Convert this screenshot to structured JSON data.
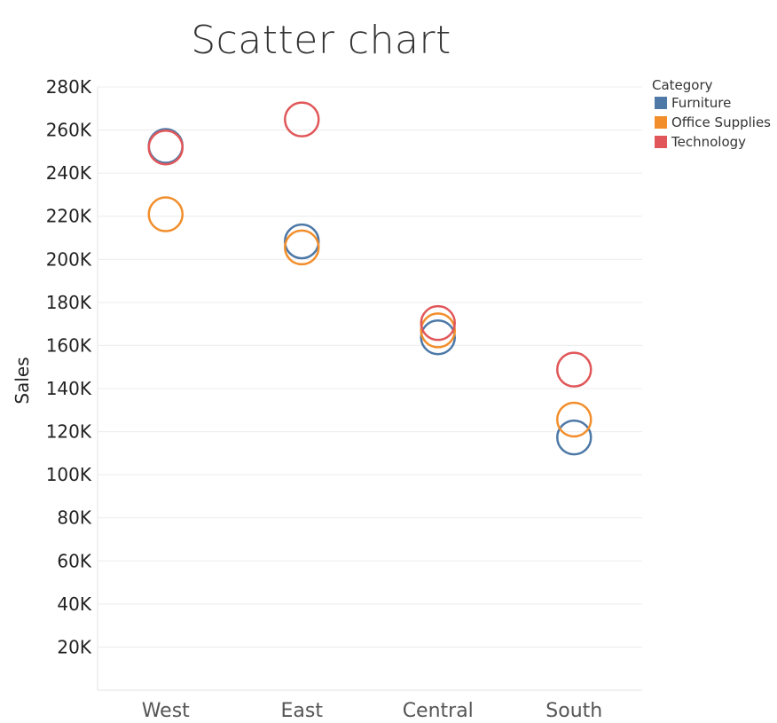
{
  "chart_data": {
    "type": "scatter",
    "title": "Scatter chart",
    "xlabel": "",
    "ylabel": "Sales",
    "categories": [
      "West",
      "East",
      "Central",
      "South"
    ],
    "ylim": [
      0,
      280000
    ],
    "y_ticks": [
      20000,
      40000,
      60000,
      80000,
      100000,
      120000,
      140000,
      160000,
      180000,
      200000,
      220000,
      240000,
      260000,
      280000
    ],
    "y_tick_labels": [
      "20K",
      "40K",
      "60K",
      "80K",
      "100K",
      "120K",
      "140K",
      "160K",
      "180K",
      "200K",
      "220K",
      "240K",
      "260K",
      "280K"
    ],
    "grid": true,
    "legend": {
      "title": "Category",
      "placement": "top-right"
    },
    "marker": "open-circle",
    "series": [
      {
        "name": "Furniture",
        "color": "#4e79a7",
        "values": [
          252600,
          208300,
          163800,
          117300
        ]
      },
      {
        "name": "Office Supplies",
        "color": "#f28e2b",
        "values": [
          220900,
          205500,
          167000,
          125600
        ]
      },
      {
        "name": "Technology",
        "color": "#e15759",
        "values": [
          251900,
          264900,
          170400,
          148800
        ]
      }
    ]
  }
}
